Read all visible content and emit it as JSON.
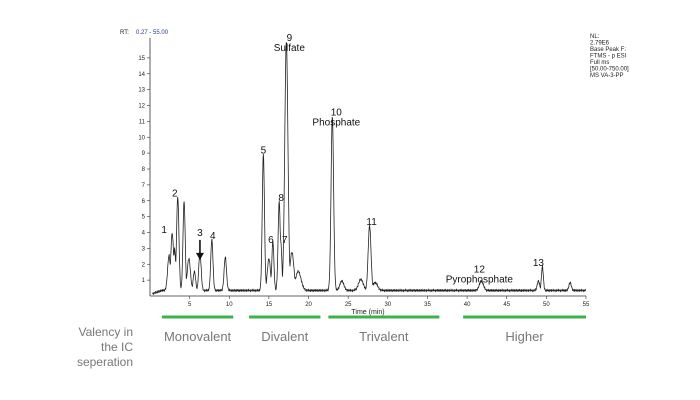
{
  "chart_data": {
    "type": "line",
    "header": {
      "rt_label": "RT:",
      "rt_range": "0.27 - 55.00"
    },
    "info": [
      "NL:",
      "2.79E6",
      "Base Peak F:",
      "FTMS - p ESI",
      "Full ms",
      "[50.00-750.00]",
      "MS VA-3-PP"
    ],
    "xlabel": "Time (min)",
    "xlim": [
      0,
      55
    ],
    "ylim": [
      0,
      16
    ],
    "xticks": [
      5,
      10,
      15,
      20,
      25,
      30,
      35,
      40,
      45,
      50,
      55
    ],
    "yticks": [
      1,
      2,
      3,
      4,
      5,
      6,
      7,
      8,
      9,
      10,
      11,
      12,
      13,
      14,
      15
    ],
    "peaks": [
      {
        "x": 2.8,
        "y": 3.6,
        "label": "1",
        "name": ""
      },
      {
        "x": 3.5,
        "y": 5.9,
        "label": "2",
        "name": ""
      },
      {
        "x": 6.3,
        "y": 2.4,
        "label": "3",
        "name": ""
      },
      {
        "x": 7.8,
        "y": 3.2,
        "label": "4",
        "name": ""
      },
      {
        "x": 14.3,
        "y": 8.6,
        "label": "5",
        "name": ""
      },
      {
        "x": 15.5,
        "y": 3.1,
        "label": "6",
        "name": ""
      },
      {
        "x": 16.5,
        "y": 3.1,
        "label": "7",
        "name": ""
      },
      {
        "x": 16.3,
        "y": 5.6,
        "label": "8",
        "name": ""
      },
      {
        "x": 17.2,
        "y": 15.7,
        "label": "9",
        "name": "Sulfate"
      },
      {
        "x": 23.0,
        "y": 11.0,
        "label": "10",
        "name": "Phosphate"
      },
      {
        "x": 27.7,
        "y": 4.1,
        "label": "11",
        "name": ""
      },
      {
        "x": 41.8,
        "y": 0.6,
        "label": "12",
        "name": "Pyrophosphate"
      },
      {
        "x": 49.5,
        "y": 1.5,
        "label": "13",
        "name": ""
      }
    ],
    "valency": {
      "label_lines": [
        "Valency in",
        "the IC",
        "seperation"
      ],
      "accent_color": "#3cb34a",
      "groups": [
        {
          "name": "Monovalent",
          "range": [
            1.5,
            10.5
          ]
        },
        {
          "name": "Divalent",
          "range": [
            12.5,
            21.5
          ]
        },
        {
          "name": "Trivalent",
          "range": [
            22.5,
            36.5
          ]
        },
        {
          "name": "Higher",
          "range": [
            39.5,
            55
          ]
        }
      ]
    }
  }
}
